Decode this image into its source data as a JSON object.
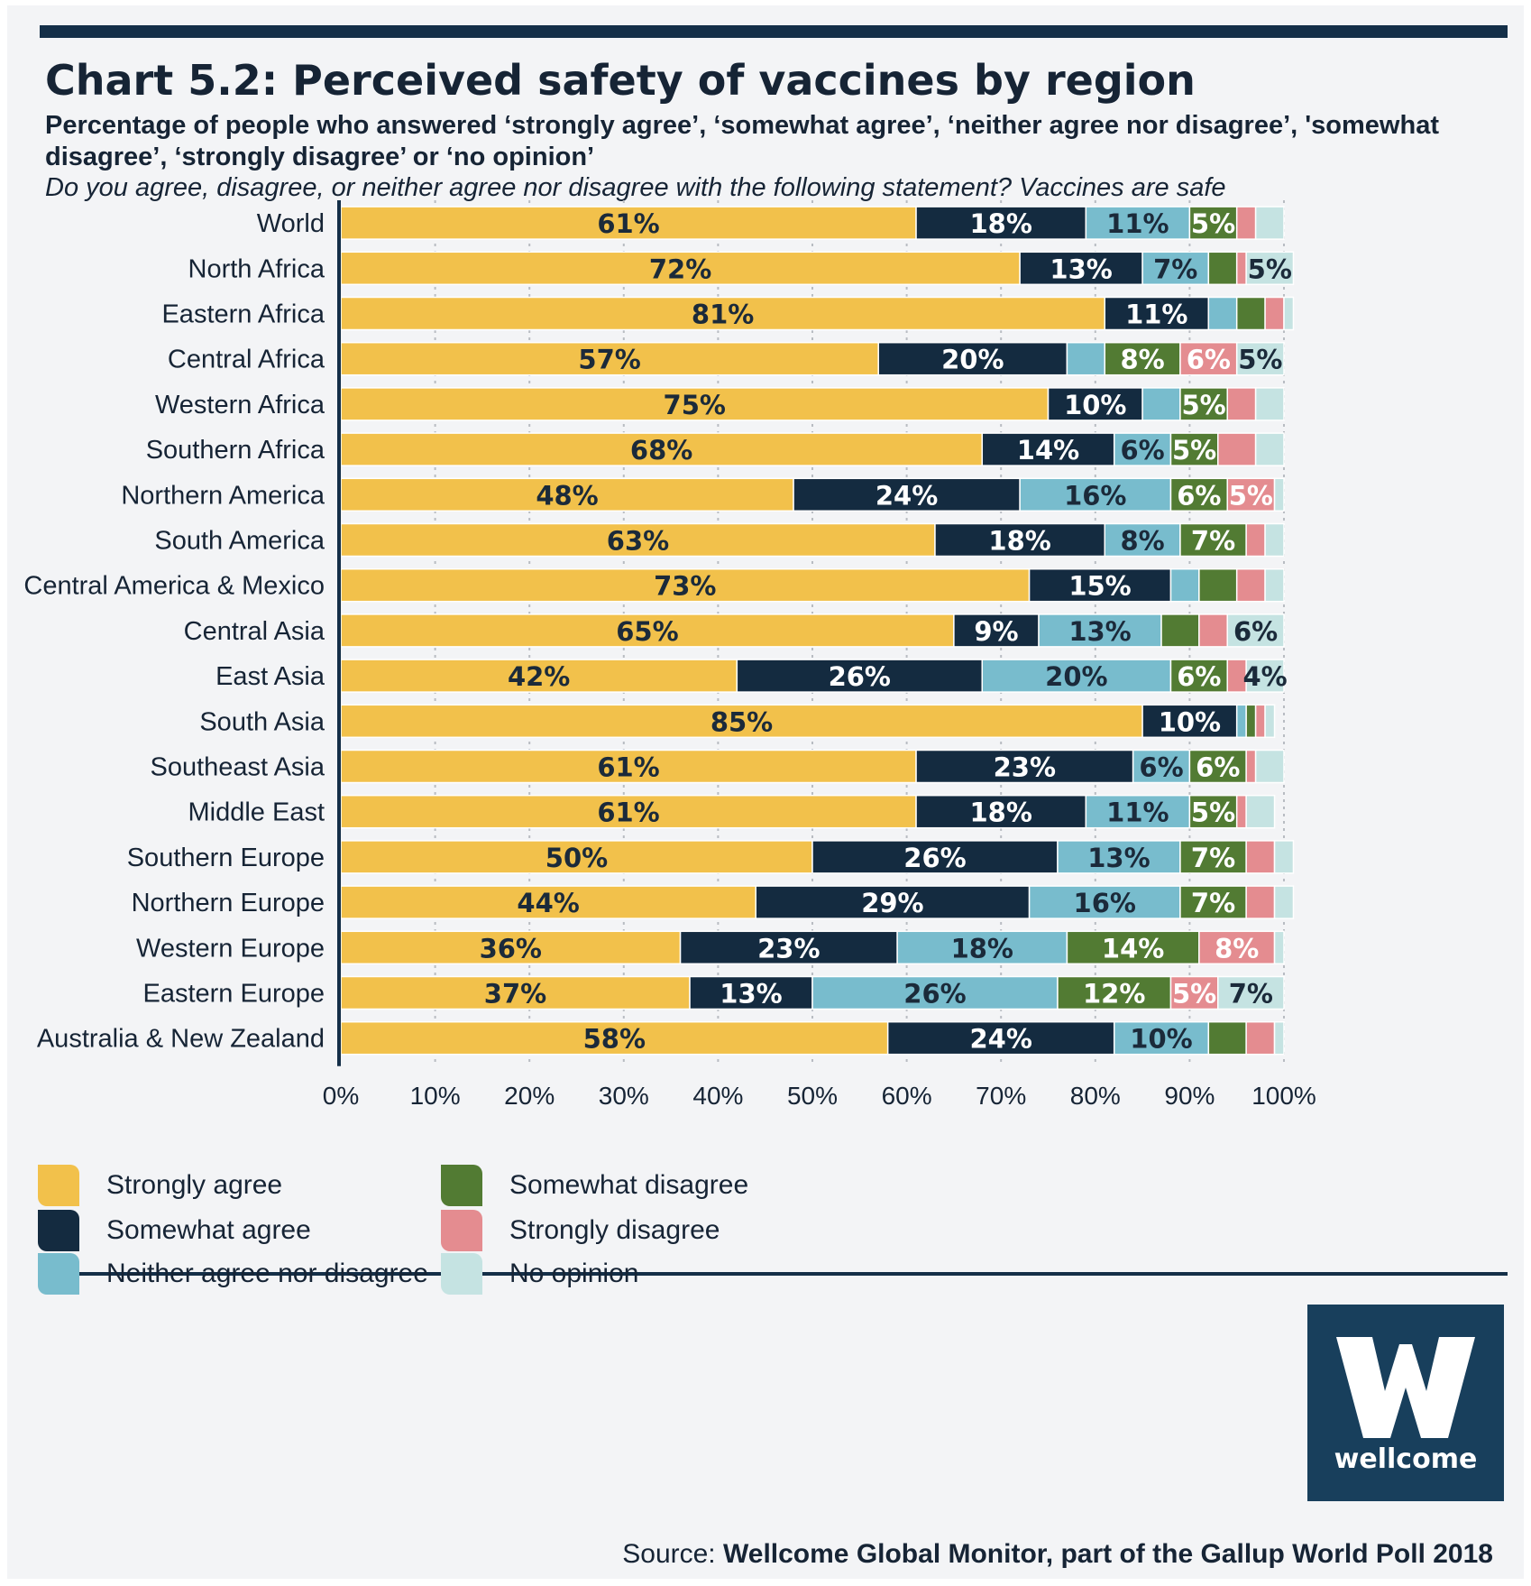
{
  "title": "Chart 5.2: Perceived safety of vaccines by region",
  "subtitle": "Percentage of people who answered ‘strongly agree’, ‘somewhat agree’, ‘neither agree nor disagree’, 'somewhat disagree’, ‘strongly disagree’ or ‘no opinion’",
  "question": "Do you agree, disagree, or neither agree nor disagree with the following statement? Vaccines are safe",
  "source_prefix": "Source:",
  "source_bold": "Wellcome Global Monitor, part of the Gallup World Poll 2018",
  "logo": {
    "text": "wellcome",
    "letter": "W"
  },
  "chart_data": {
    "type": "bar",
    "orientation": "horizontal",
    "stacked": true,
    "xlim": [
      0,
      100
    ],
    "xticks": [
      "0%",
      "10%",
      "20%",
      "30%",
      "40%",
      "50%",
      "60%",
      "70%",
      "80%",
      "90%",
      "100%"
    ],
    "grid": true,
    "legend_position": "bottom",
    "categories": [
      "World",
      "North Africa",
      "Eastern Africa",
      "Central Africa",
      "Western Africa",
      "Southern Africa",
      "Northern America",
      "South America",
      "Central America & Mexico",
      "Central Asia",
      "East Asia",
      "South Asia",
      "Southeast Asia",
      "Middle East",
      "Southern Europe",
      "Northern Europe",
      "Western Europe",
      "Eastern Europe",
      "Australia & New Zealand"
    ],
    "series": [
      {
        "name": "Strongly agree",
        "color": "#f2c14b",
        "label_color": "#1b2a3a",
        "values": [
          61,
          72,
          81,
          57,
          75,
          68,
          48,
          63,
          73,
          65,
          42,
          85,
          61,
          61,
          50,
          44,
          36,
          37,
          58
        ],
        "labels": [
          "61%",
          "72%",
          "81%",
          "57%",
          "75%",
          "68%",
          "48%",
          "63%",
          "73%",
          "65%",
          "42%",
          "85%",
          "61%",
          "61%",
          "50%",
          "44%",
          "36%",
          "37%",
          "58%"
        ]
      },
      {
        "name": "Somewhat agree",
        "color": "#142b40",
        "label_color": "#ffffff",
        "values": [
          18,
          13,
          11,
          20,
          10,
          14,
          24,
          18,
          15,
          9,
          26,
          10,
          23,
          18,
          26,
          29,
          23,
          13,
          24
        ],
        "labels": [
          "18%",
          "13%",
          "11%",
          "20%",
          "10%",
          "14%",
          "24%",
          "18%",
          "15%",
          "9%",
          "26%",
          "10%",
          "23%",
          "18%",
          "26%",
          "29%",
          "23%",
          "13%",
          "24%"
        ]
      },
      {
        "name": "Neither agree nor disagree",
        "color": "#78bccd",
        "label_color": "#1b2a3a",
        "values": [
          11,
          7,
          3,
          4,
          4,
          6,
          16,
          8,
          3,
          13,
          20,
          1,
          6,
          11,
          13,
          16,
          18,
          26,
          10
        ],
        "labels": [
          "11%",
          "7%",
          "",
          "",
          "",
          "6%",
          "16%",
          "8%",
          "",
          "13%",
          "20%",
          "",
          "6%",
          "11%",
          "13%",
          "16%",
          "18%",
          "26%",
          "10%"
        ]
      },
      {
        "name": "Somewhat disagree",
        "color": "#527b33",
        "label_color": "#ffffff",
        "values": [
          5,
          3,
          3,
          8,
          5,
          5,
          6,
          7,
          4,
          4,
          6,
          1,
          6,
          5,
          7,
          7,
          14,
          12,
          4
        ],
        "labels": [
          "5%",
          "",
          "",
          "8%",
          "5%",
          "5%",
          "6%",
          "7%",
          "",
          "",
          "6%",
          "",
          "6%",
          "5%",
          "7%",
          "7%",
          "14%",
          "12%",
          ""
        ]
      },
      {
        "name": "Strongly disagree",
        "color": "#e48c90",
        "label_color": "#ffffff",
        "values": [
          2,
          1,
          2,
          6,
          3,
          4,
          5,
          2,
          3,
          3,
          2,
          1,
          1,
          1,
          3,
          3,
          8,
          5,
          3
        ],
        "labels": [
          "",
          "",
          "",
          "6%",
          "",
          "",
          "5%",
          "",
          "",
          "",
          "",
          "",
          "",
          "",
          "",
          "",
          "8%",
          "5%",
          ""
        ]
      },
      {
        "name": "No opinion",
        "color": "#c5e3e2",
        "label_color": "#1b2a3a",
        "values": [
          3,
          5,
          1,
          5,
          3,
          3,
          1,
          2,
          2,
          6,
          4,
          1,
          3,
          3,
          2,
          2,
          1,
          7,
          1
        ],
        "labels": [
          "",
          "5%",
          "",
          "5%",
          "",
          "",
          "",
          "",
          "",
          "6%",
          "4%",
          "",
          "",
          "",
          "",
          "",
          "",
          "7%",
          ""
        ]
      }
    ]
  }
}
